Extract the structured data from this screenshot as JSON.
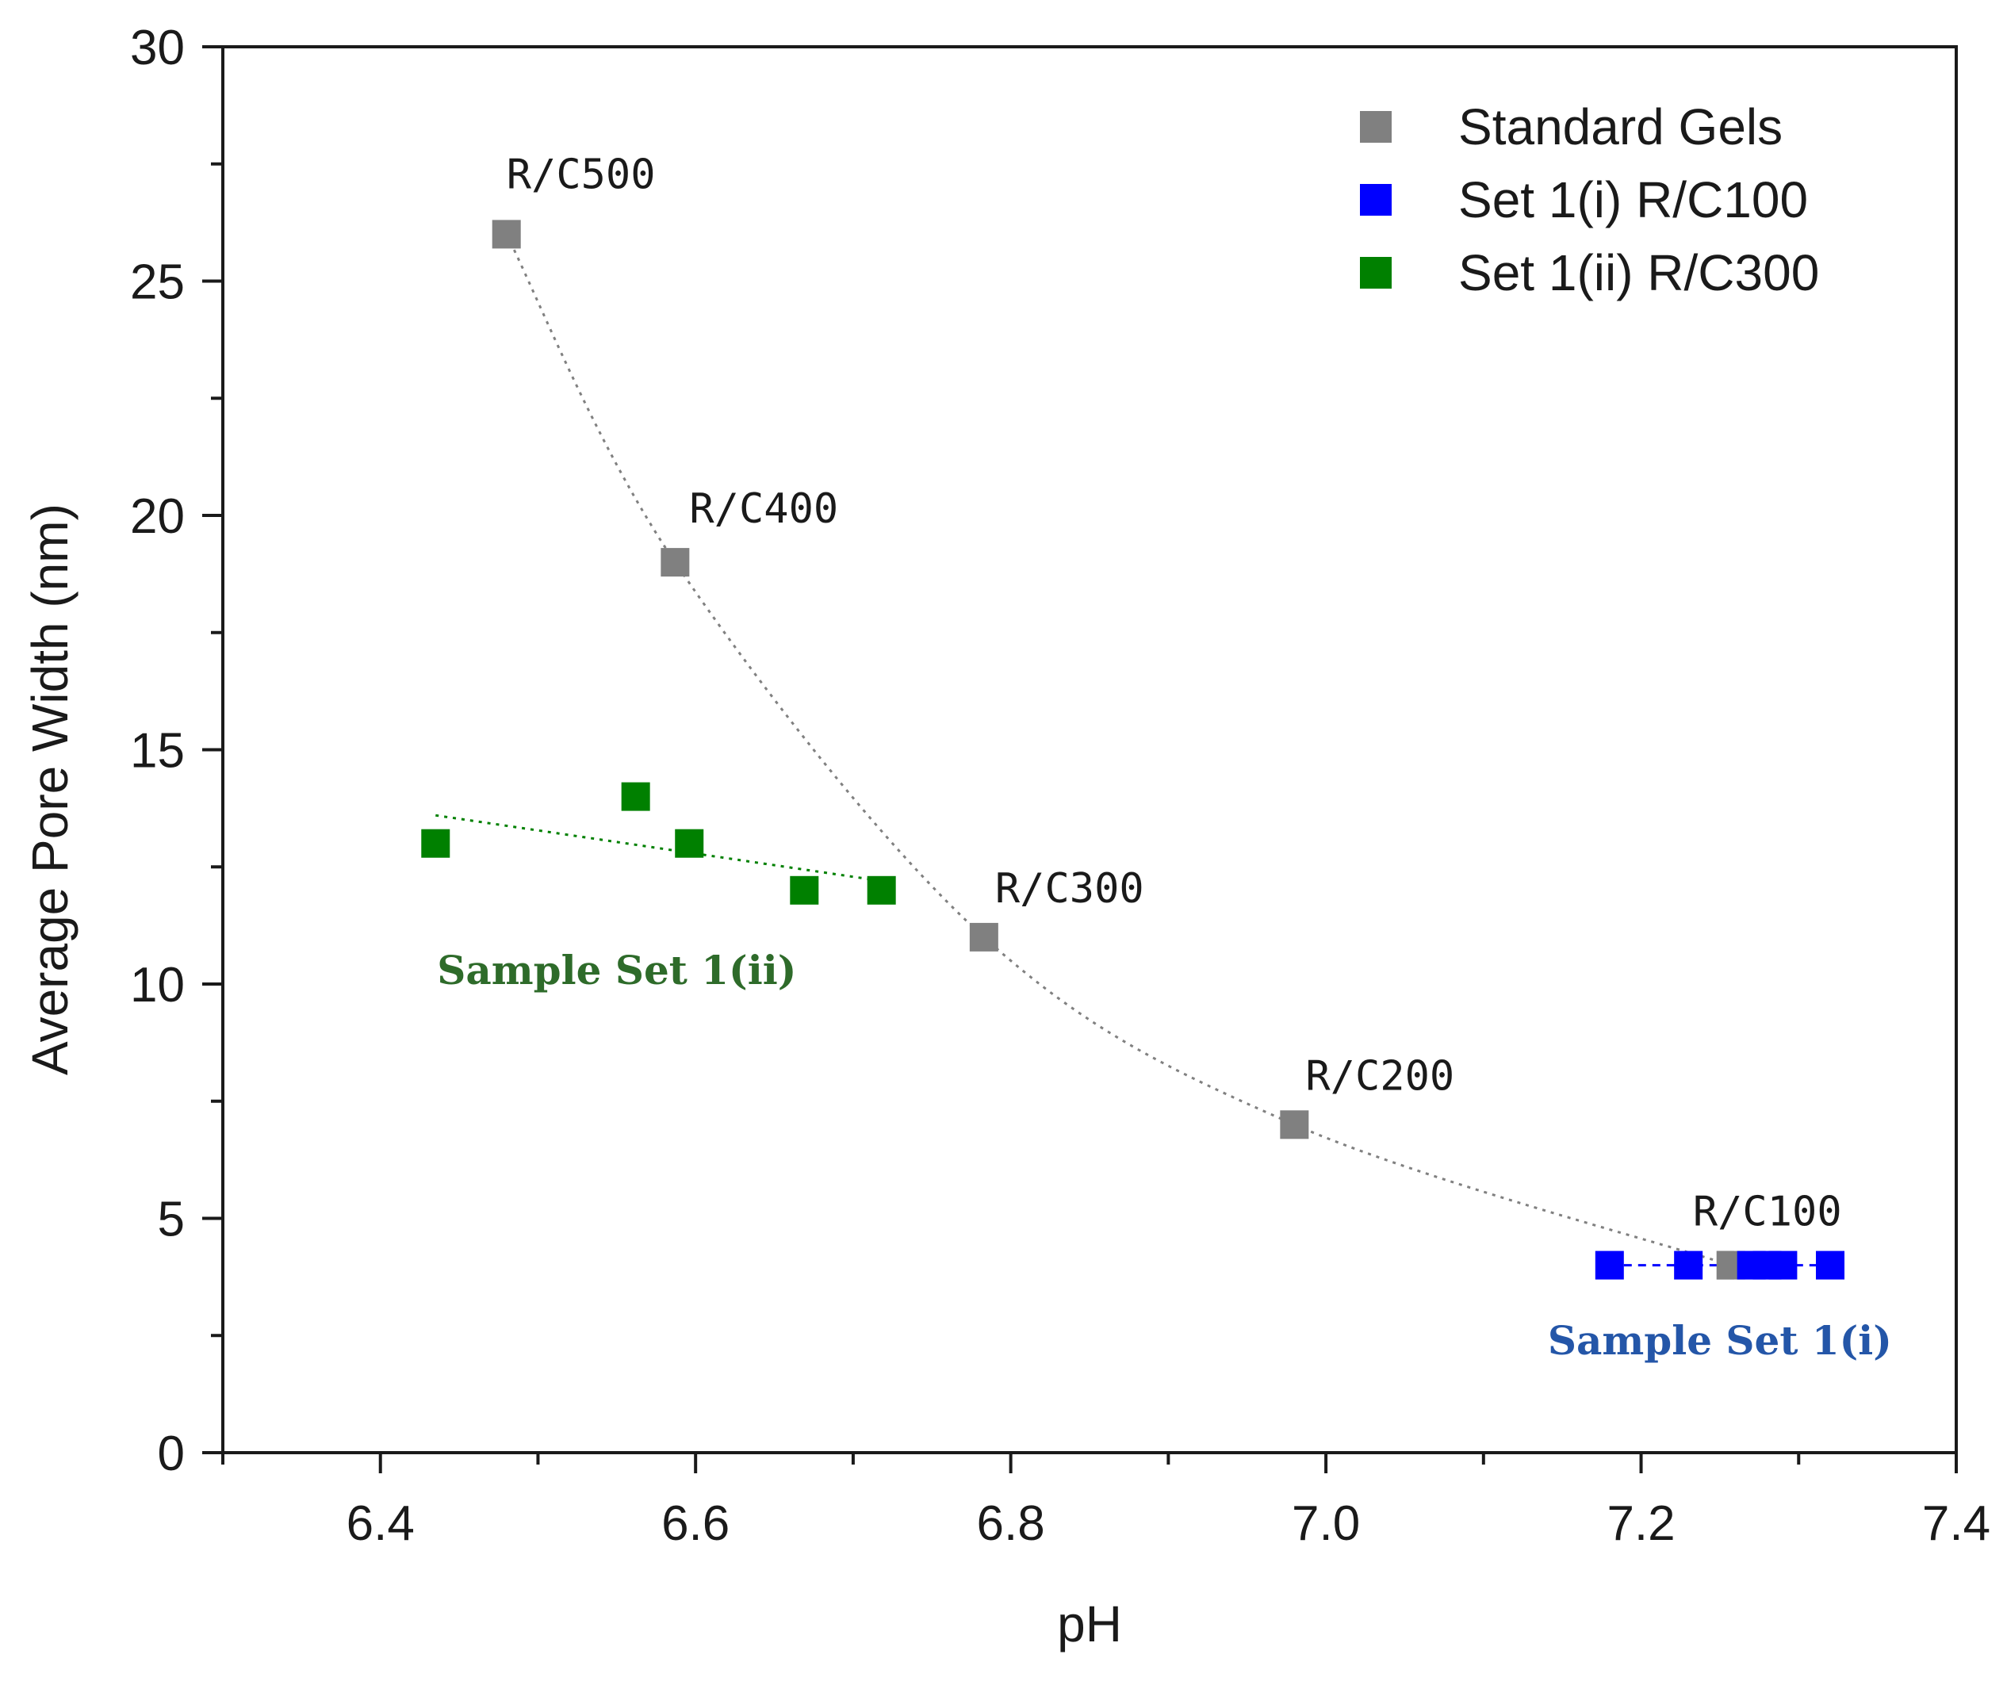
{
  "chart_data": {
    "type": "scatter",
    "xlabel": "pH",
    "ylabel": "Average Pore Width (nm)",
    "xlim": [
      6.3,
      7.4
    ],
    "ylim": [
      0,
      30
    ],
    "x_ticks": [
      "6.4",
      "6.6",
      "6.8",
      "7.0",
      "7.2",
      "7.4"
    ],
    "y_ticks": [
      "0",
      "5",
      "10",
      "15",
      "20",
      "25",
      "30"
    ],
    "grid": false,
    "legend_position": "top-right",
    "series": [
      {
        "name": "Standard Gels",
        "color": "#808080",
        "marker": "square",
        "points": [
          {
            "x": 6.48,
            "y": 26,
            "label": "R/C500"
          },
          {
            "x": 6.587,
            "y": 19,
            "label": "R/C400"
          },
          {
            "x": 6.783,
            "y": 11,
            "label": "R/C300"
          },
          {
            "x": 6.98,
            "y": 7,
            "label": "R/C200"
          },
          {
            "x": 7.257,
            "y": 4,
            "label": "R/C100"
          }
        ],
        "trendline": {
          "style": "dotted",
          "color": "#808080",
          "type": "curve"
        }
      },
      {
        "name": "Set 1(i) R/C100",
        "color": "#0000ff",
        "marker": "square",
        "points": [
          {
            "x": 7.18,
            "y": 4
          },
          {
            "x": 7.23,
            "y": 4
          },
          {
            "x": 7.27,
            "y": 4
          },
          {
            "x": 7.28,
            "y": 4
          },
          {
            "x": 7.29,
            "y": 4
          },
          {
            "x": 7.32,
            "y": 4
          }
        ],
        "trendline": {
          "style": "dashed",
          "color": "#0000ff",
          "type": "linear",
          "from": [
            7.18,
            4
          ],
          "to": [
            7.32,
            4
          ]
        }
      },
      {
        "name": "Set 1(ii) R/C300",
        "color": "#008000",
        "marker": "square",
        "points": [
          {
            "x": 6.435,
            "y": 13
          },
          {
            "x": 6.562,
            "y": 14
          },
          {
            "x": 6.596,
            "y": 13
          },
          {
            "x": 6.669,
            "y": 12
          },
          {
            "x": 6.718,
            "y": 12
          }
        ],
        "trendline": {
          "style": "dotted",
          "color": "#008000",
          "type": "linear",
          "from": [
            6.435,
            13.6
          ],
          "to": [
            6.718,
            12.2
          ]
        }
      }
    ],
    "annotations": [
      {
        "text": "Sample Set 1(ii)",
        "color": "#2e6b2a",
        "x": 6.55,
        "y": 10.0
      },
      {
        "text": "Sample Set 1(i)",
        "color": "#2456a8",
        "x": 7.25,
        "y": 2.1
      }
    ]
  }
}
